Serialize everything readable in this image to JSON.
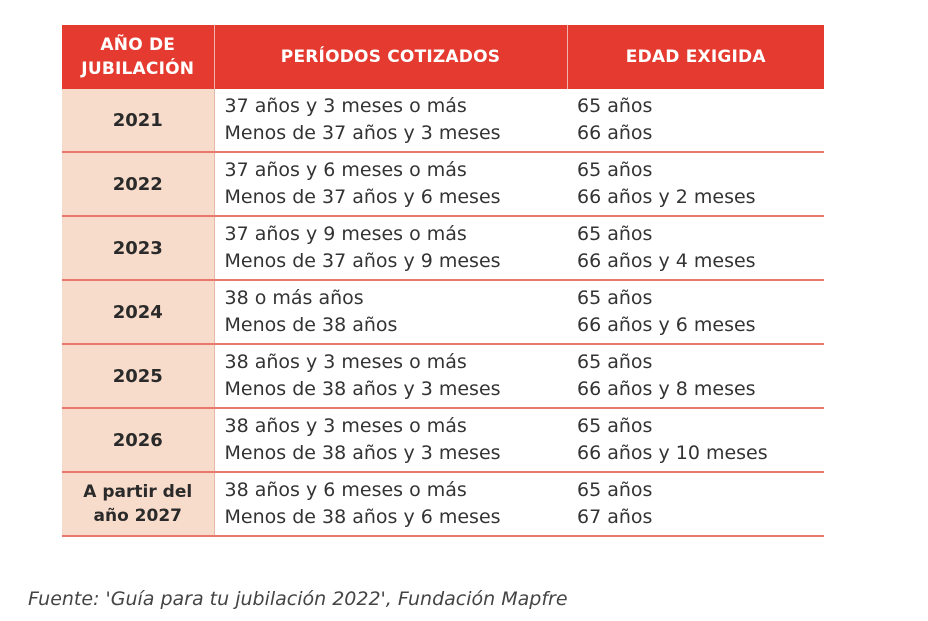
{
  "table": {
    "headers": {
      "year_line1": "AÑO DE",
      "year_line2": "JUBILACIÓN",
      "periods": "PERÍODOS COTIZADOS",
      "age": "EDAD EXIGIDA"
    },
    "rows": [
      {
        "year_line1": "2021",
        "year_line2": "",
        "period_a": "37 años y 3 meses o más",
        "period_b": "Menos de 37 años y 3 meses",
        "age_a": "65 años",
        "age_b": "66 años"
      },
      {
        "year_line1": "2022",
        "year_line2": "",
        "period_a": "37 años y 6 meses o más",
        "period_b": "Menos de 37 años y 6 meses",
        "age_a": "65 años",
        "age_b": "66 años y 2 meses"
      },
      {
        "year_line1": "2023",
        "year_line2": "",
        "period_a": "37 años y 9 meses o más",
        "period_b": "Menos de 37 años y 9 meses",
        "age_a": "65 años",
        "age_b": "66 años y 4 meses"
      },
      {
        "year_line1": "2024",
        "year_line2": "",
        "period_a": "38 o más años",
        "period_b": "Menos de 38 años",
        "age_a": "65 años",
        "age_b": "66 años y 6 meses"
      },
      {
        "year_line1": "2025",
        "year_line2": "",
        "period_a": "38 años y 3 meses o más",
        "period_b": "Menos de 38 años y 3 meses",
        "age_a": "65 años",
        "age_b": "66 años y 8 meses"
      },
      {
        "year_line1": "2026",
        "year_line2": "",
        "period_a": "38 años y 3 meses o más",
        "period_b": "Menos de 38 años y 3 meses",
        "age_a": "65 años",
        "age_b": "66 años y 10 meses"
      },
      {
        "year_line1": "A partir del",
        "year_line2": "año 2027",
        "period_a": "38 años y 6 meses o más",
        "period_b": "Menos de 38 años y 6 meses",
        "age_a": "65 años",
        "age_b": "67 años"
      }
    ]
  },
  "caption": "Fuente: 'Guía para tu jubilación 2022', Fundación Mapfre",
  "colors": {
    "header_bg": "#e53a2f",
    "year_bg": "#f8dccb",
    "row_divider": "#e9776d"
  }
}
